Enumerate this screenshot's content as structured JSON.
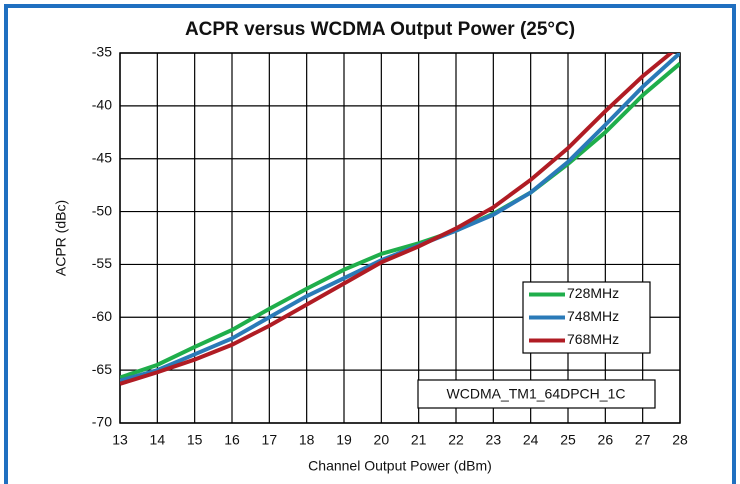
{
  "chart_data": {
    "type": "line",
    "title": "ACPR versus WCDMA Output Power (25°C)",
    "x_label": "Channel Output Power (dBm)",
    "y_label": "ACPR (dBc)",
    "annotation": "WCDMA_TM1_64DPCH_1C",
    "x": [
      13,
      14,
      15,
      16,
      17,
      18,
      19,
      20,
      21,
      22,
      23,
      24,
      25,
      26,
      27,
      28
    ],
    "series": [
      {
        "name": "728MHz",
        "color": "#1fae4b",
        "values": [
          -65.7,
          -64.5,
          -62.8,
          -61.2,
          -59.2,
          -57.3,
          -55.5,
          -54.0,
          -53.0,
          -51.8,
          -50.2,
          -48.2,
          -45.5,
          -42.5,
          -39.0,
          -36.0
        ]
      },
      {
        "name": "748MHz",
        "color": "#2a7ab8",
        "values": [
          -66.0,
          -65.0,
          -63.5,
          -62.0,
          -60.0,
          -58.0,
          -56.3,
          -54.6,
          -53.2,
          -51.8,
          -50.3,
          -48.2,
          -45.3,
          -41.8,
          -38.2,
          -35.0
        ]
      },
      {
        "name": "768MHz",
        "color": "#b01c24",
        "values": [
          -66.3,
          -65.2,
          -64.0,
          -62.6,
          -60.8,
          -58.8,
          -56.8,
          -54.8,
          -53.3,
          -51.6,
          -49.6,
          -47.0,
          -44.0,
          -40.5,
          -37.2,
          -34.3
        ]
      }
    ],
    "xlim": [
      13,
      28
    ],
    "xticks": [
      13,
      14,
      15,
      16,
      17,
      18,
      19,
      20,
      21,
      22,
      23,
      24,
      25,
      26,
      27,
      28
    ],
    "ylim": [
      -70,
      -35
    ],
    "yticks": [
      -70,
      -65,
      -60,
      -55,
      -50,
      -45,
      -40,
      -35
    ],
    "grid": true,
    "legend": "lower right"
  }
}
